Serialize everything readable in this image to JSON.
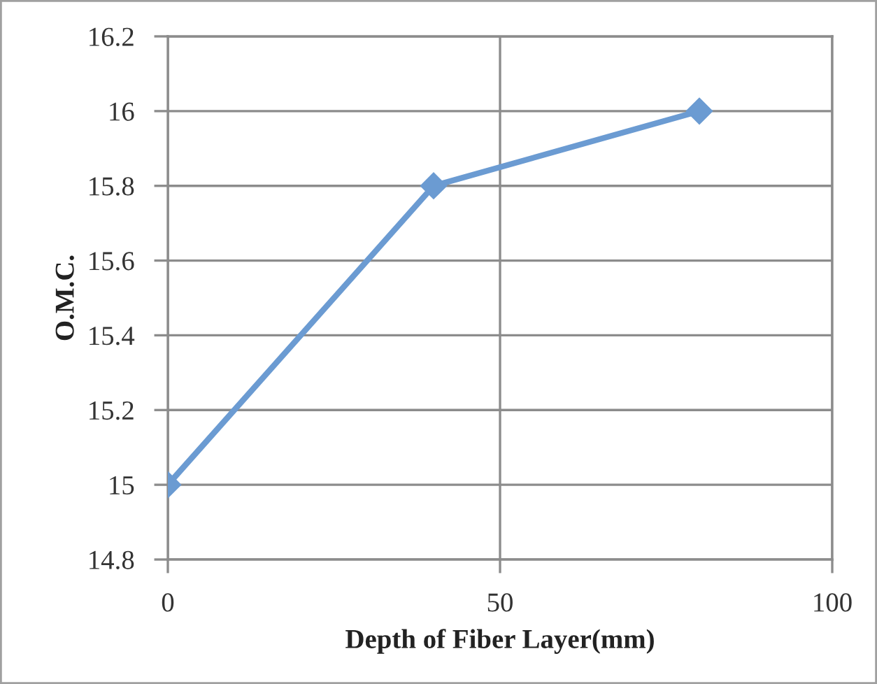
{
  "chart_data": {
    "type": "line",
    "xlabel": "Depth of Fiber Layer(mm)",
    "ylabel": "O.M.C.",
    "x": [
      0,
      40,
      80
    ],
    "series": [
      {
        "color": "#6b9bd2",
        "values": [
          15,
          15.8,
          16
        ]
      }
    ],
    "xlim": [
      0,
      100
    ],
    "xticks": [
      0,
      50,
      100
    ],
    "ylim": [
      14.8,
      16.2
    ],
    "yticks": [
      14.8,
      15,
      15.2,
      15.4,
      15.6,
      15.8,
      16,
      16.2
    ],
    "grid": true,
    "marker": "diamond",
    "line_style": "solid"
  }
}
